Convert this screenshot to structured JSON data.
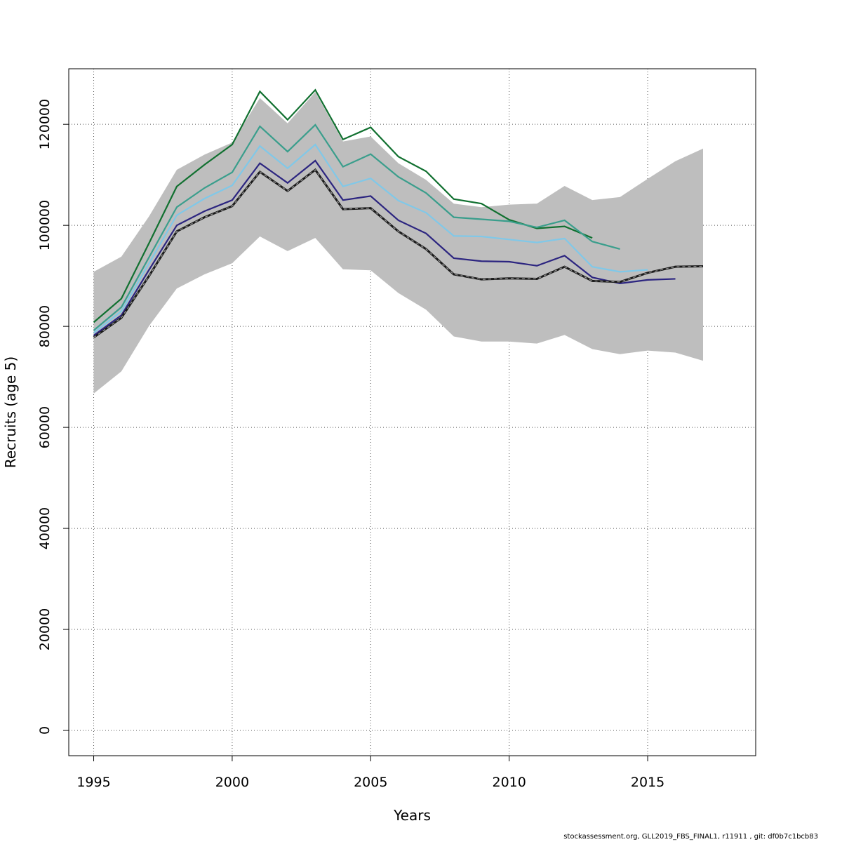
{
  "chart_data": {
    "type": "line",
    "xlabel": "Years",
    "ylabel": "Recruits (age 5)",
    "xlim": [
      1994.1,
      2018.9
    ],
    "ylim": [
      -5000,
      131000
    ],
    "x_ticks": [
      1995,
      2000,
      2005,
      2010,
      2015
    ],
    "y_ticks": [
      0,
      20000,
      40000,
      60000,
      80000,
      100000,
      120000
    ],
    "grid": true,
    "confidence_band": {
      "color": "#bebebe",
      "x": [
        1995,
        1996,
        1997,
        1998,
        1999,
        2000,
        2001,
        2002,
        2003,
        2004,
        2005,
        2006,
        2007,
        2008,
        2009,
        2010,
        2011,
        2012,
        2013,
        2014,
        2015,
        2016,
        2017
      ],
      "upper": [
        90800,
        93800,
        101800,
        111000,
        114000,
        116400,
        125200,
        120200,
        126400,
        116600,
        117600,
        112300,
        109000,
        104300,
        103600,
        104100,
        104300,
        107800,
        105000,
        105600,
        109200,
        112700,
        115200
      ],
      "lower": [
        66700,
        71100,
        80100,
        87500,
        90300,
        92500,
        97800,
        94900,
        97500,
        91300,
        91100,
        86600,
        83300,
        78000,
        77000,
        77000,
        76600,
        78300,
        75500,
        74500,
        75200,
        74800,
        73200
      ]
    },
    "series": [
      {
        "color": "#1a1a1a",
        "dashed": true,
        "x": [
          1995,
          1996,
          1997,
          1998,
          1999,
          2000,
          2001,
          2002,
          2003,
          2004,
          2005,
          2006,
          2007,
          2008,
          2009,
          2010,
          2011,
          2012,
          2013,
          2014,
          2015,
          2016,
          2017
        ],
        "values": [
          77800,
          81700,
          90000,
          98800,
          101600,
          103800,
          110600,
          106800,
          111000,
          103200,
          103400,
          98800,
          95300,
          90300,
          89300,
          89500,
          89400,
          91800,
          89000,
          88800,
          90600,
          91800,
          91900
        ]
      },
      {
        "color": "#2c2580",
        "x": [
          1995,
          1996,
          1997,
          1998,
          1999,
          2000,
          2001,
          2002,
          2003,
          2004,
          2005,
          2006,
          2007,
          2008,
          2009,
          2010,
          2011,
          2012,
          2013,
          2014,
          2015,
          2016
        ],
        "values": [
          78200,
          82200,
          91200,
          100000,
          102800,
          105000,
          112300,
          108400,
          112800,
          105000,
          105800,
          101000,
          98400,
          93500,
          92900,
          92800,
          92000,
          94000,
          89700,
          88500,
          89200,
          89400
        ]
      },
      {
        "color": "#80c8e8",
        "x": [
          1995,
          1996,
          1997,
          1998,
          1999,
          2000,
          2001,
          2002,
          2003,
          2004,
          2005,
          2006,
          2007,
          2008,
          2009,
          2010,
          2011,
          2012,
          2013,
          2014,
          2015
        ],
        "values": [
          78700,
          83000,
          92500,
          102000,
          105300,
          107900,
          115700,
          111300,
          116000,
          107700,
          109300,
          104900,
          102500,
          97900,
          97800,
          97200,
          96600,
          97400,
          91800,
          90800,
          91200
        ]
      },
      {
        "color": "#3a9e8c",
        "x": [
          1995,
          1996,
          1997,
          1998,
          1999,
          2000,
          2001,
          2002,
          2003,
          2004,
          2005,
          2006,
          2007,
          2008,
          2009,
          2010,
          2011,
          2012,
          2013,
          2014
        ],
        "values": [
          79200,
          83800,
          93700,
          103600,
          107400,
          110500,
          119600,
          114600,
          119900,
          111600,
          114100,
          109600,
          106400,
          101600,
          101200,
          100800,
          99600,
          101000,
          96800,
          95300
        ]
      },
      {
        "color": "#117030",
        "x": [
          1995,
          1996,
          1997,
          1998,
          1999,
          2000,
          2001,
          2002,
          2003,
          2004,
          2005,
          2006,
          2007,
          2008,
          2009,
          2010,
          2011,
          2012,
          2013
        ],
        "values": [
          80800,
          85500,
          96500,
          107700,
          112000,
          116000,
          126500,
          120900,
          126800,
          117000,
          119400,
          113600,
          110700,
          105200,
          104300,
          101100,
          99400,
          99800,
          97500
        ]
      }
    ],
    "footer": "stockassessment.org, GLL2019_FBS_FINAL1, r11911 , git: df0b7c1bcb83"
  }
}
